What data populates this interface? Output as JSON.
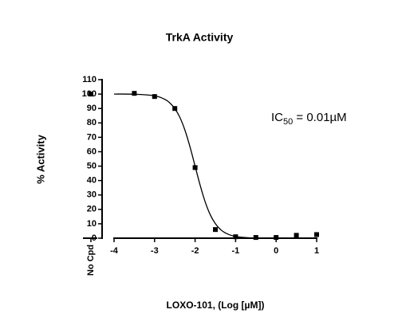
{
  "chart_data": {
    "type": "scatter",
    "title": "TrkA Activity",
    "xlabel": "LOXO-101, (Log [µM])",
    "ylabel": "% Activity",
    "annotation": {
      "prefix": "IC",
      "sub": "50",
      "suffix": " = 0.01µM"
    },
    "control": {
      "label": "No Cpd",
      "value": 100
    },
    "x": [
      -3.5,
      -3,
      -2.5,
      -2,
      -1.5,
      -1,
      -0.5,
      0,
      0.5,
      1
    ],
    "values": [
      100.5,
      98.3,
      90,
      49,
      6,
      1,
      0.5,
      0.5,
      2,
      2.5
    ],
    "curve": {
      "x": [
        -4,
        -3.5,
        -3,
        -2.75,
        -2.625,
        -2.5,
        -2.375,
        -2.25,
        -2.125,
        -2,
        -1.875,
        -1.75,
        -1.625,
        -1.5,
        -1.375,
        -1.25,
        -1,
        -0.5,
        0,
        1
      ],
      "values": [
        100,
        99.9,
        98.8,
        96.4,
        93.9,
        89.9,
        83.8,
        74.9,
        63.3,
        50,
        36.7,
        25.1,
        16.2,
        10.1,
        6.1,
        3.6,
        1.2,
        0.1,
        0,
        0
      ]
    },
    "color": "#000000",
    "xlim": [
      -4,
      1
    ],
    "xticks": [
      -4,
      -3,
      -2,
      -1,
      0,
      1
    ],
    "ylim": [
      0,
      110
    ],
    "yticks": [
      0,
      10,
      20,
      30,
      40,
      50,
      60,
      70,
      80,
      90,
      100,
      110
    ]
  }
}
